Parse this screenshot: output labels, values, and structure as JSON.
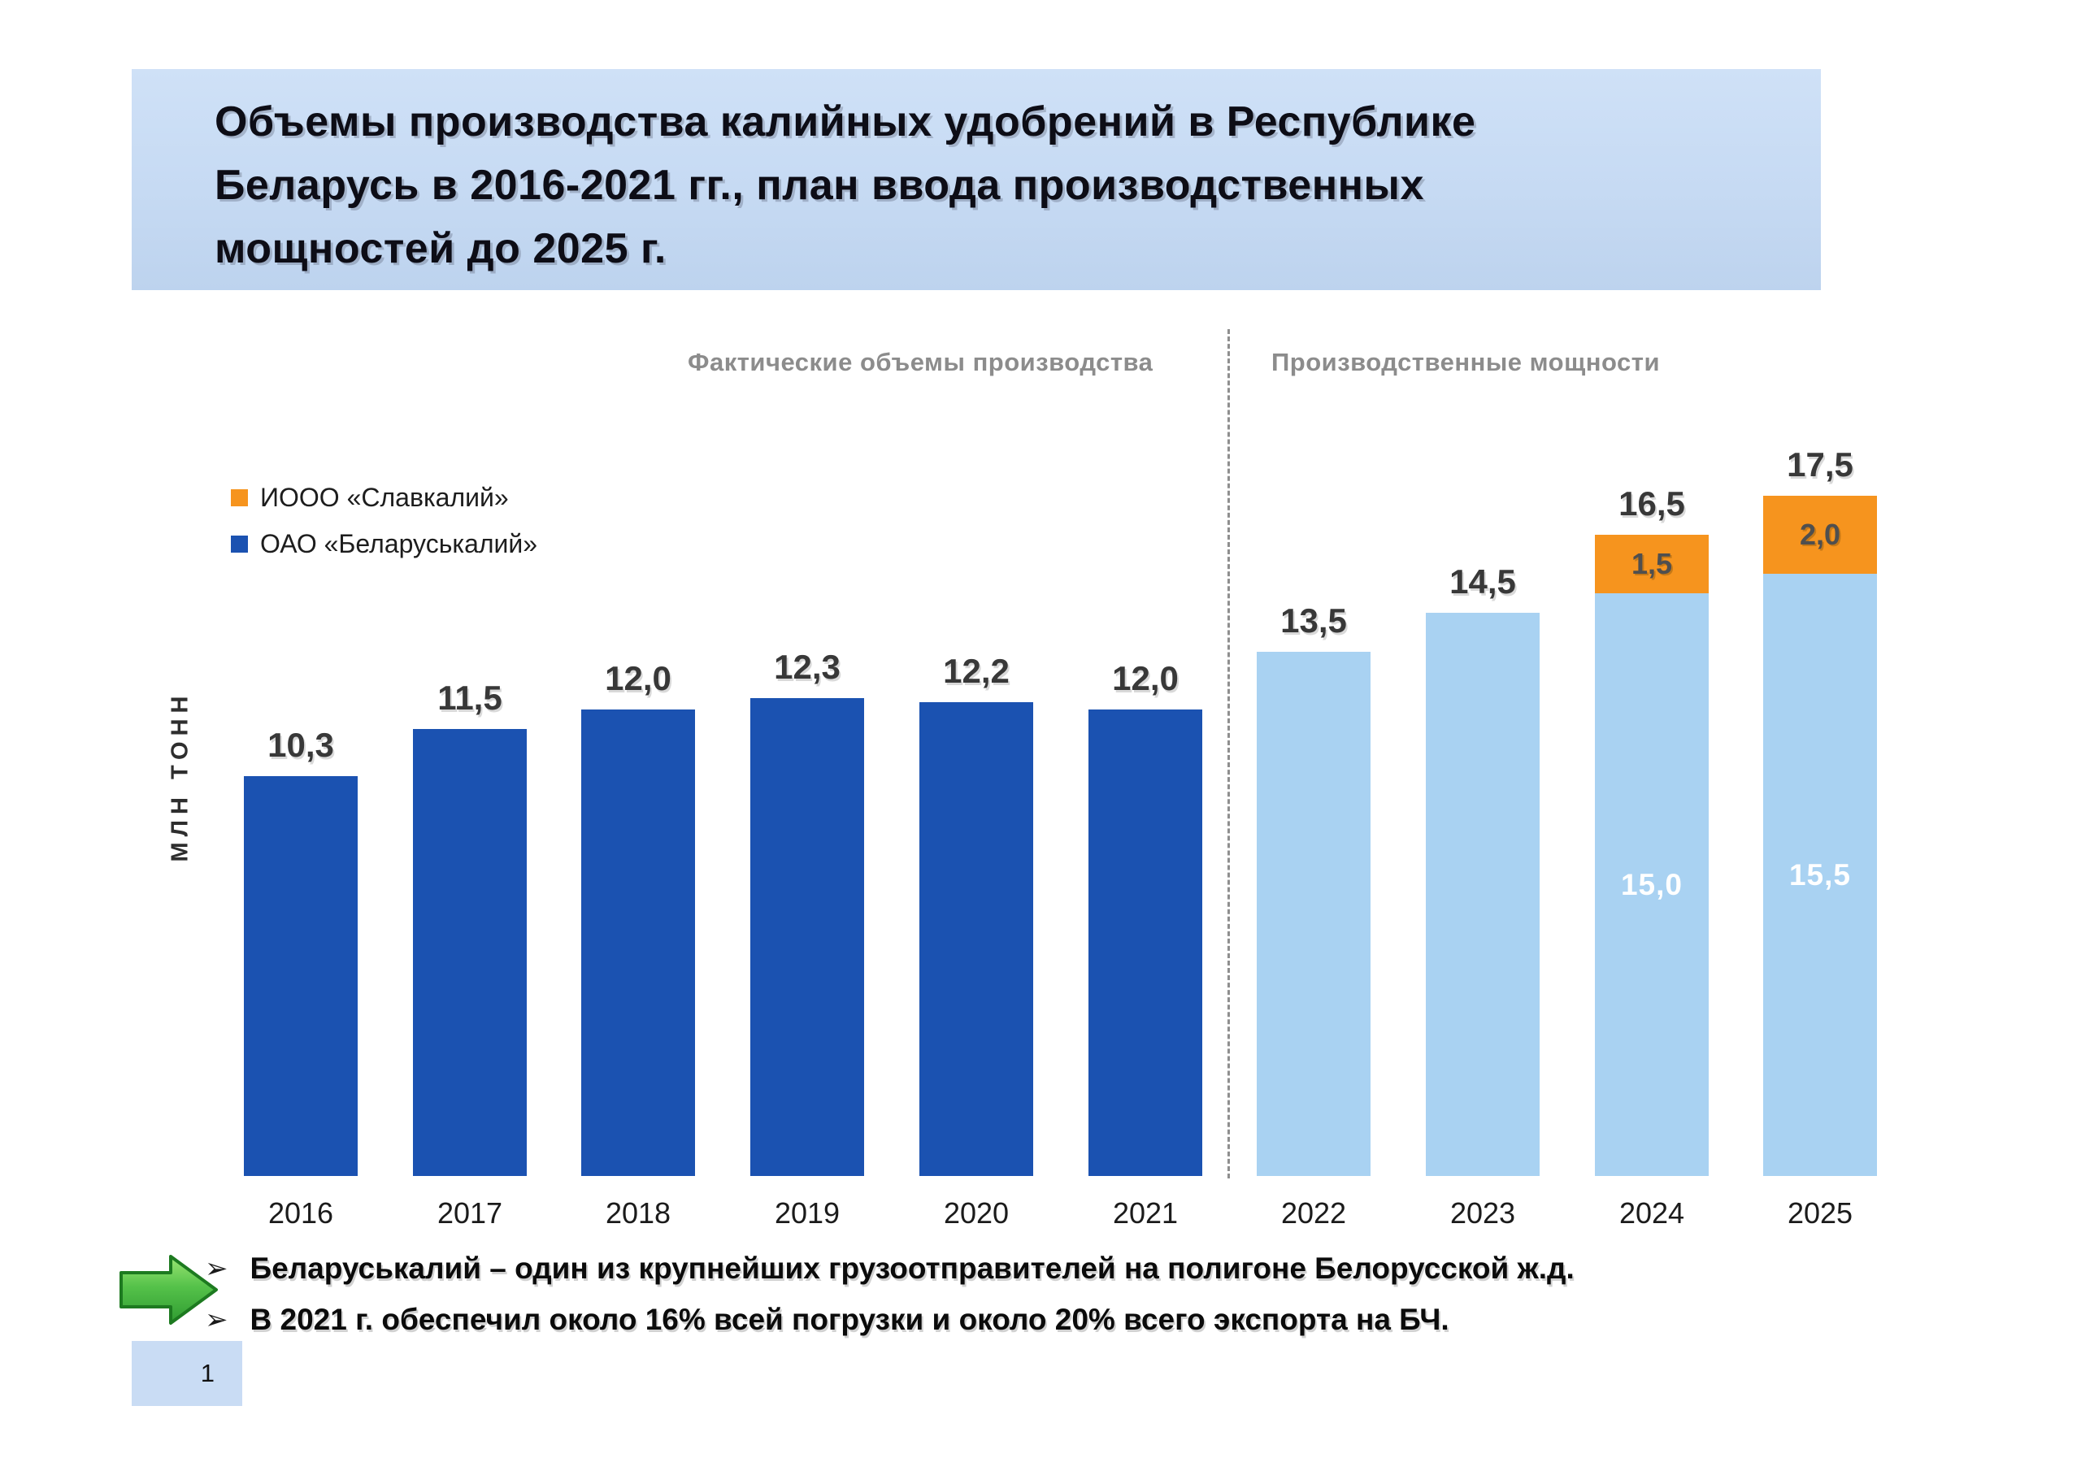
{
  "title": {
    "text": "Объемы производства калийных удобрений в Республике\nБеларусь в 2016-2021 гг., план ввода производственных\nмощностей до 2025 г."
  },
  "sections": {
    "left": "Фактические объемы производства",
    "right": "Производственные мощности"
  },
  "colors": {
    "dark_blue": "#1b52b1",
    "light_blue": "#a9d2f2",
    "orange": "#f6941e",
    "banner_bg": "#c6daf3",
    "section_label_gray": "#8c8c8c"
  },
  "legend": {
    "items": [
      {
        "label": "ИООО «Славкалий»",
        "color_key": "orange"
      },
      {
        "label": "ОАО «Беларуськалий»",
        "color_key": "dark_blue"
      }
    ]
  },
  "y_axis": {
    "label": "МЛН ТОНН"
  },
  "chart_data": {
    "type": "bar",
    "stacked": true,
    "grid": false,
    "legend_position": "top-left",
    "ylabel": "млн тонн",
    "ylim": [
      0,
      18.5
    ],
    "categories": [
      "2016",
      "2017",
      "2018",
      "2019",
      "2020",
      "2021",
      "2022",
      "2023",
      "2024",
      "2025"
    ],
    "bars": [
      {
        "category": "2016",
        "group": "Фактические объемы производства",
        "total": 10.3,
        "total_label": "10,3",
        "segments": [
          {
            "series": "ОАО «Беларуськалий»",
            "value": 10.3,
            "style": "dark_blue"
          }
        ]
      },
      {
        "category": "2017",
        "group": "Фактические объемы производства",
        "total": 11.5,
        "total_label": "11,5",
        "segments": [
          {
            "series": "ОАО «Беларуськалий»",
            "value": 11.5,
            "style": "dark_blue"
          }
        ]
      },
      {
        "category": "2018",
        "group": "Фактические объемы производства",
        "total": 12.0,
        "total_label": "12,0",
        "segments": [
          {
            "series": "ОАО «Беларуськалий»",
            "value": 12.0,
            "style": "dark_blue"
          }
        ]
      },
      {
        "category": "2019",
        "group": "Фактические объемы производства",
        "total": 12.3,
        "total_label": "12,3",
        "segments": [
          {
            "series": "ОАО «Беларуськалий»",
            "value": 12.3,
            "style": "dark_blue"
          }
        ]
      },
      {
        "category": "2020",
        "group": "Фактические объемы производства",
        "total": 12.2,
        "total_label": "12,2",
        "segments": [
          {
            "series": "ОАО «Беларуськалий»",
            "value": 12.2,
            "style": "dark_blue"
          }
        ]
      },
      {
        "category": "2021",
        "group": "Фактические объемы производства",
        "total": 12.0,
        "total_label": "12,0",
        "segments": [
          {
            "series": "ОАО «Беларуськалий»",
            "value": 12.0,
            "style": "dark_blue"
          }
        ]
      },
      {
        "category": "2022",
        "group": "Производственные мощности",
        "total": 13.5,
        "total_label": "13,5",
        "segments": [
          {
            "series": "ОАО «Беларуськалий»",
            "value": 13.5,
            "style": "light_blue"
          }
        ]
      },
      {
        "category": "2023",
        "group": "Производственные мощности",
        "total": 14.5,
        "total_label": "14,5",
        "segments": [
          {
            "series": "ОАО «Беларуськалий»",
            "value": 14.5,
            "style": "light_blue"
          }
        ]
      },
      {
        "category": "2024",
        "group": "Производственные мощности",
        "total": 16.5,
        "total_label": "16,5",
        "segments": [
          {
            "series": "ОАО «Беларуськалий»",
            "value": 15.0,
            "style": "light_blue",
            "inner_label": "15,0"
          },
          {
            "series": "ИООО «Славкалий»",
            "value": 1.5,
            "style": "orange",
            "inner_label": "1,5"
          }
        ]
      },
      {
        "category": "2025",
        "group": "Производственные мощности",
        "total": 17.5,
        "total_label": "17,5",
        "segments": [
          {
            "series": "ОАО «Беларуськалий»",
            "value": 15.5,
            "style": "light_blue",
            "inner_label": "15,5"
          },
          {
            "series": "ИООО «Славкалий»",
            "value": 2.0,
            "style": "orange",
            "inner_label": "2,0"
          }
        ]
      }
    ]
  },
  "bullets": {
    "marker": "➢",
    "items": [
      "Беларуськалий – один из крупнейших грузоотправителей на полигоне Белорусской ж.д.",
      "В 2021 г. обеспечил около 16% всей погрузки и около 20% всего экспорта на БЧ."
    ]
  },
  "page": {
    "number": "1"
  }
}
